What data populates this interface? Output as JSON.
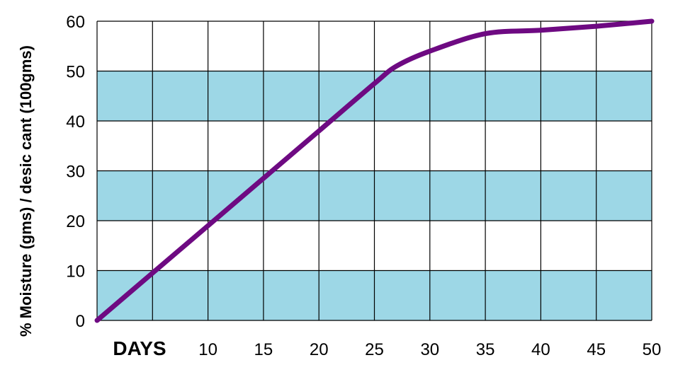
{
  "chart_data": {
    "type": "line",
    "title": "",
    "xlabel": "DAYS",
    "ylabel": "% Moisture (gms) / desic cant (100gms)",
    "xlim": [
      0,
      50
    ],
    "ylim": [
      0,
      60
    ],
    "x_ticks": [
      10,
      15,
      20,
      25,
      30,
      35,
      40,
      45,
      50
    ],
    "x_tick_labels": [
      "10",
      "15",
      "20",
      "25",
      "30",
      "35",
      "40",
      "45",
      "50"
    ],
    "y_ticks": [
      0,
      10,
      20,
      30,
      40,
      50,
      60
    ],
    "y_tick_labels": [
      "0",
      "10",
      "20",
      "30",
      "40",
      "50",
      "60"
    ],
    "grid": true,
    "band_color": "#9dd7e6",
    "line_color": "#6e0a82",
    "grid_color": "#000000",
    "shaded_bands": [
      [
        0,
        10
      ],
      [
        20,
        30
      ],
      [
        40,
        50
      ]
    ],
    "series": [
      {
        "x": [
          0,
          5,
          10,
          15,
          20,
          25,
          27,
          30,
          35,
          40,
          45,
          50
        ],
        "y": [
          0,
          9.5,
          19,
          28.5,
          38,
          47.5,
          51,
          54,
          57.5,
          58.2,
          59,
          60
        ]
      }
    ]
  }
}
